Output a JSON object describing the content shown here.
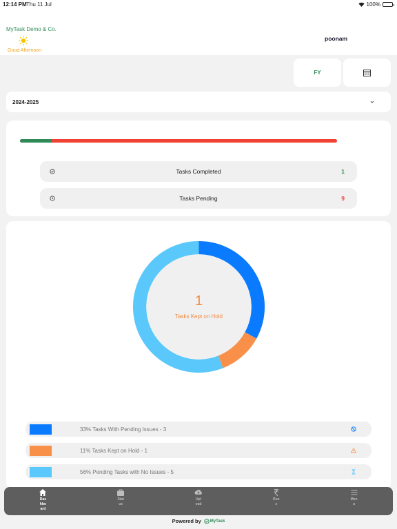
{
  "status_bar": {
    "time": "12:14 PM",
    "date": "Thu 11 Jul",
    "battery": "100%"
  },
  "header": {
    "company": "MyTask Demo & Co.",
    "greeting": "Good Afternoon",
    "username": "poonam"
  },
  "filters": {
    "fy_label": "FY",
    "calendar_icon": "calendar-icon",
    "year_value": "2024-2025"
  },
  "summary": {
    "completed_fraction": 0.1,
    "colors": {
      "completed": "#2e8b57",
      "pending": "#f04134"
    },
    "rows": [
      {
        "label": "Tasks Completed",
        "count": "1",
        "icon": "check-circle-icon"
      },
      {
        "label": "Tasks Pending",
        "count": "9",
        "icon": "clock-icon"
      }
    ]
  },
  "donut": {
    "center_value": "1",
    "center_label": "Tasks Kept on Hold",
    "segments": [
      {
        "pct": 33,
        "color": "#0a7aff"
      },
      {
        "pct": 11,
        "color": "#f9904a"
      },
      {
        "pct": 56,
        "color": "#5ac8fa"
      }
    ]
  },
  "legend": [
    {
      "text": "33% Tasks With Pending Issues - 3",
      "color": "#0a7aff",
      "icon": "ban-icon"
    },
    {
      "text": "11% Tasks Kept on Hold - 1",
      "color": "#f9904a",
      "icon": "warning-icon"
    },
    {
      "text": "56% Pending Tasks with No Issues - 5",
      "color": "#5ac8fa",
      "icon": "hourglass-icon"
    }
  ],
  "tabs": [
    {
      "label": "Dashboard",
      "icon": "home-icon",
      "active": true
    },
    {
      "label": "Status",
      "icon": "briefcase-icon",
      "active": false
    },
    {
      "label": "Upload",
      "icon": "cloud-upload-icon",
      "active": false
    },
    {
      "label": "Dues",
      "icon": "rupee-icon",
      "active": false
    },
    {
      "label": "Menu",
      "icon": "menu-icon",
      "active": false
    }
  ],
  "footer": {
    "powered_by": "Powered by",
    "brand": "MyTask"
  }
}
